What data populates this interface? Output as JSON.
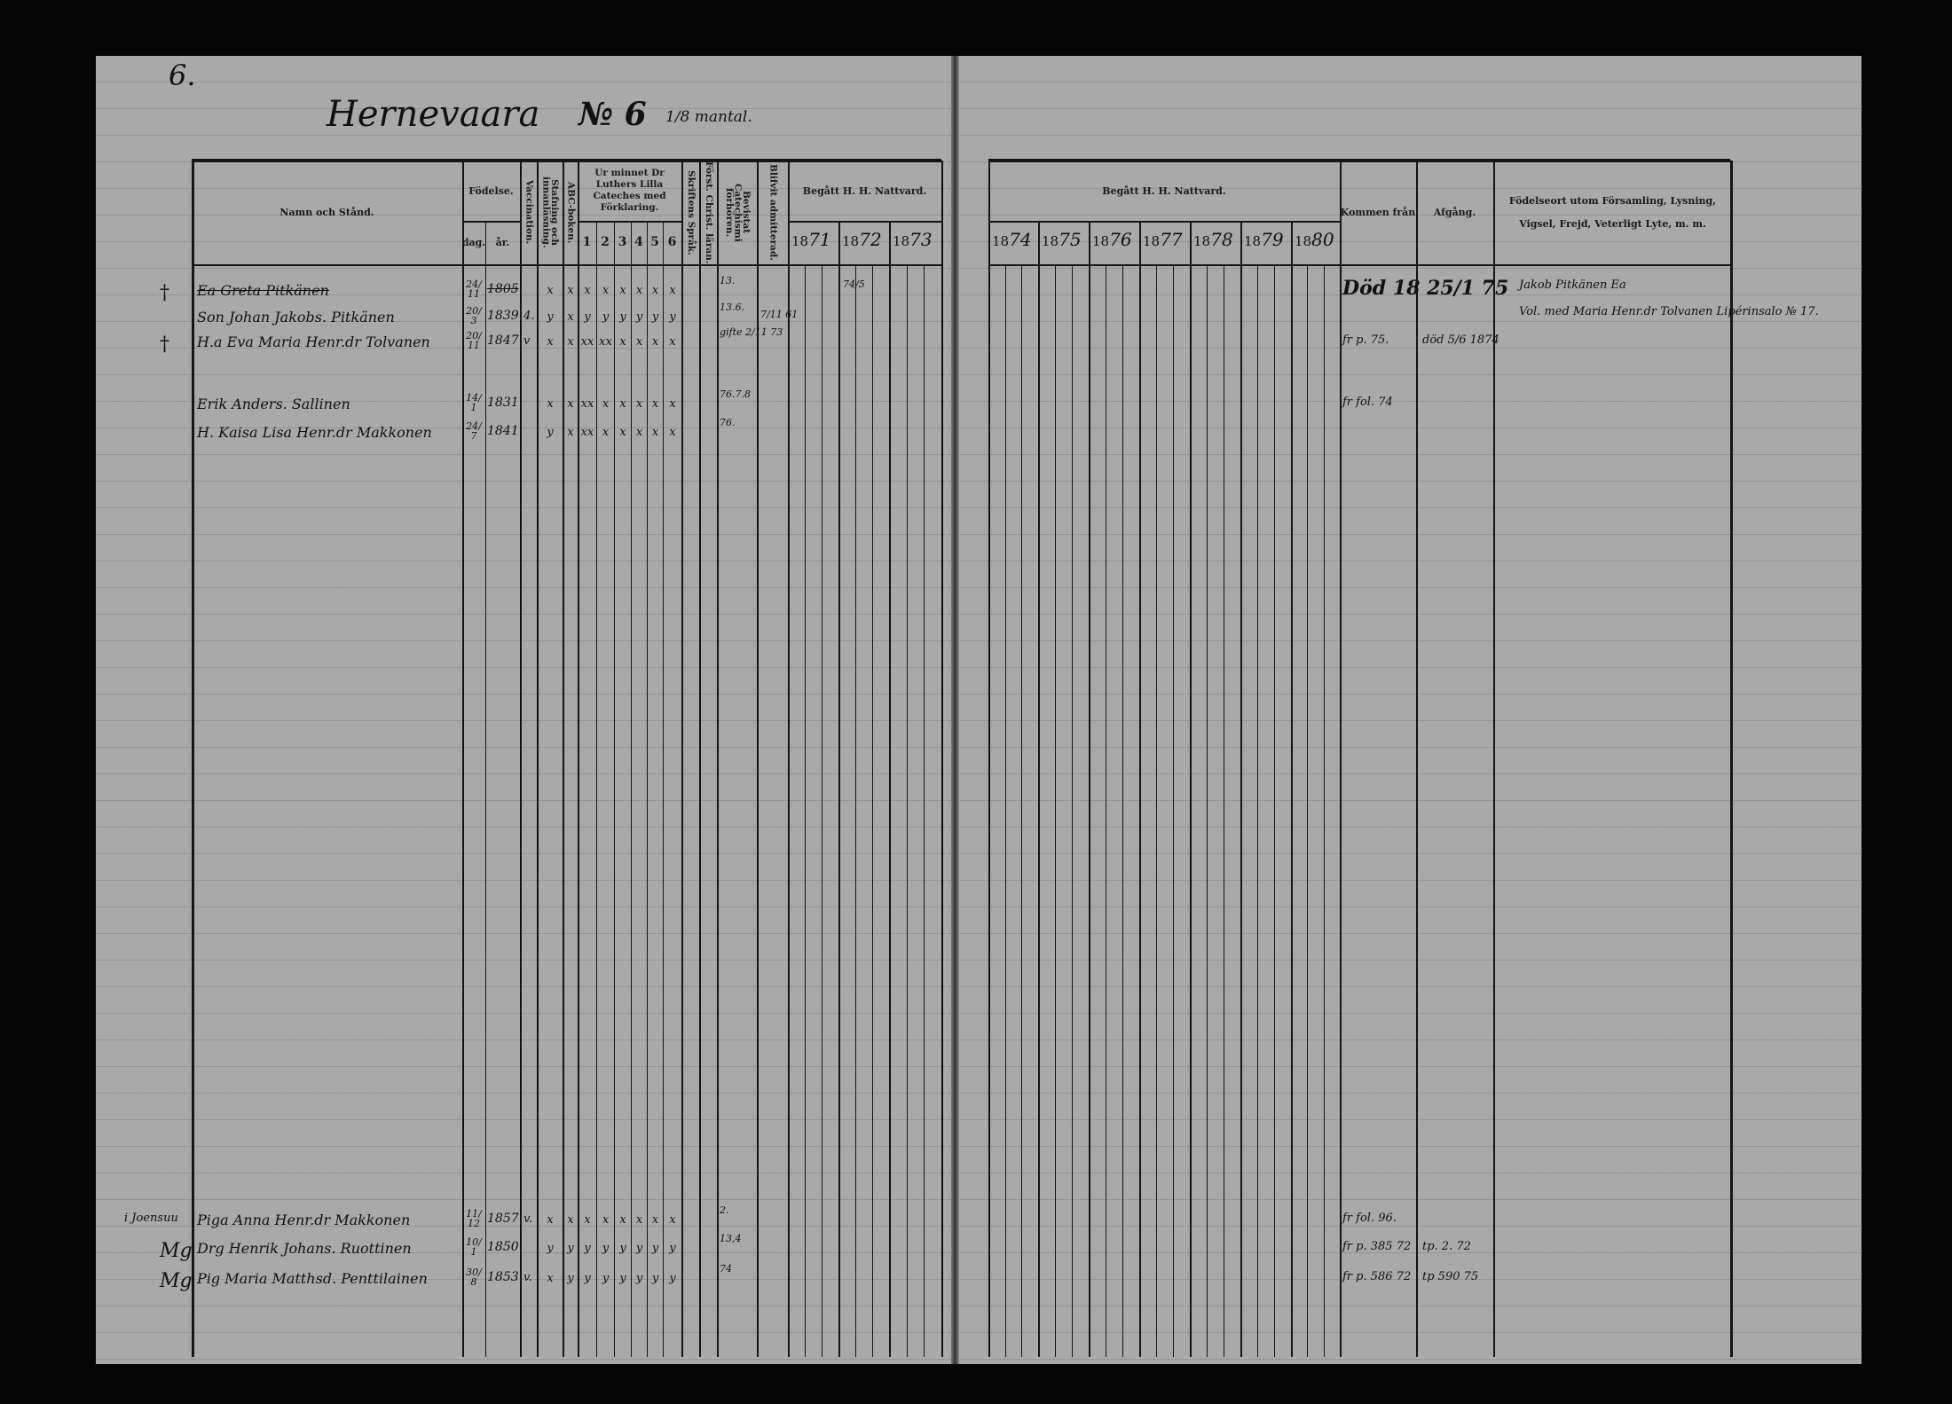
{
  "page": {
    "page_number": "6.",
    "village": "Hernevaara",
    "farm_number": "№ 6",
    "mantal": "1/8 mantal."
  },
  "header": {
    "name": "Namn och Stånd.",
    "birth": "Födelse.",
    "birth_day": "dag.",
    "birth_year": "år.",
    "vaccination": "Vaccination.",
    "reading": "Stafning och innanläsning.",
    "abc": "ABC-boken.",
    "catechism": "Ur minnet Dr Luthers Lilla Cateches med Förklaring.",
    "catechism_parts": [
      "1",
      "2",
      "3",
      "4",
      "5",
      "6"
    ],
    "scripture": "Skriftens Språk.",
    "christianity": "Först. Christ. läran.",
    "examinations": "Bevistat Catechismi förhören.",
    "admitted": "Blifvit admitterad.",
    "communion_left": "Begått H. H. Nattvard.",
    "years_left": [
      {
        "p": "18",
        "h": "71"
      },
      {
        "p": "18",
        "h": "72"
      },
      {
        "p": "18",
        "h": "73"
      }
    ],
    "communion_right": "Begått H. H. Nattvard.",
    "years_right": [
      {
        "p": "18",
        "h": "74"
      },
      {
        "p": "18",
        "h": "75"
      },
      {
        "p": "18",
        "h": "76"
      },
      {
        "p": "18",
        "h": "77"
      },
      {
        "p": "18",
        "h": "78"
      },
      {
        "p": "18",
        "h": "79"
      },
      {
        "p": "18",
        "h": "80"
      }
    ],
    "came_from": "Kommen från",
    "departure": "Afgång.",
    "remarks": "Födelseort utom Församling, Lysning, Vigsel, Frejd, Veterligt Lyte, m. m."
  },
  "entries": [
    {
      "margin": "†",
      "name": "Ea Greta Pitkänen",
      "struck": true,
      "day": "24/11",
      "year": "1805",
      "vacc": "",
      "marks": [
        "x",
        "x",
        "x",
        "x",
        "x",
        "x",
        "x",
        "x"
      ],
      "exam": "13.",
      "admit": "",
      "came_from": "Död 18 25/1 75",
      "departure": "",
      "remark": "Jakob Pitkänen Ea",
      "comm": "74/5"
    },
    {
      "margin": "",
      "name": "Son Johan Jakobs. Pitkänen",
      "struck": false,
      "day": "20/3",
      "year": "1839",
      "vacc": "4.",
      "marks": [
        "y",
        "x",
        "y",
        "y",
        "y",
        "y",
        "y",
        "y"
      ],
      "exam": "13.6.",
      "admit": "7/11 61",
      "came_from": "",
      "departure": "",
      "remark": "Vol. med Maria Henr.dr Tolvanen Lipérinsalo № 17.",
      "comm": ""
    },
    {
      "margin": "†",
      "name": "H.a Eva Maria Henr.dr Tolvanen",
      "struck": false,
      "day": "20/11",
      "year": "1847",
      "vacc": "v",
      "marks": [
        "x",
        "x",
        "xx",
        "xx",
        "x",
        "x",
        "x",
        "x"
      ],
      "exam": "gifte 2/11 73",
      "admit": "",
      "came_from": "fr p. 75.",
      "departure": "död 5/6 1874",
      "remark": "",
      "comm": ""
    },
    {
      "margin": "",
      "name": "Erik Anders. Sallinen",
      "struck": false,
      "day": "14/1",
      "year": "1831",
      "vacc": "",
      "marks": [
        "x",
        "x",
        "xx",
        "x",
        "x",
        "x",
        "x",
        "x"
      ],
      "exam": "76.7.8",
      "admit": "",
      "came_from": "fr fol. 74",
      "departure": "",
      "remark": "",
      "comm": ""
    },
    {
      "margin": "",
      "name": "H. Kaisa Lisa Henr.dr Makkonen",
      "struck": false,
      "day": "24/7",
      "year": "1841",
      "vacc": "",
      "marks": [
        "y",
        "x",
        "xx",
        "x",
        "x",
        "x",
        "x",
        "x"
      ],
      "exam": "76.",
      "admit": "",
      "came_from": "",
      "departure": "",
      "remark": "",
      "comm": ""
    },
    {
      "margin": "i Joensuu",
      "name": "Piga Anna Henr.dr Makkonen",
      "struck": false,
      "day": "11/12",
      "year": "1857",
      "vacc": "v.",
      "marks": [
        "x",
        "x",
        "x",
        "x",
        "x",
        "x",
        "x",
        "x"
      ],
      "exam": "2.",
      "admit": "",
      "came_from": "fr fol. 96.",
      "departure": "",
      "remark": "",
      "comm": ""
    },
    {
      "margin": "Mg",
      "name": "Drg Henrik Johans. Ruottinen",
      "struck": false,
      "day": "10/1",
      "year": "1850",
      "vacc": "",
      "marks": [
        "y",
        "y",
        "y",
        "y",
        "y",
        "y",
        "y",
        "y"
      ],
      "exam": "13,4",
      "admit": "",
      "came_from": "fr p. 385 72",
      "departure": "tp. 2. 72",
      "remark": "",
      "comm": ""
    },
    {
      "margin": "Mg",
      "name": "Pig Maria Matthsd. Penttilainen",
      "struck": false,
      "day": "30/8",
      "year": "1853",
      "vacc": "v.",
      "marks": [
        "x",
        "y",
        "y",
        "y",
        "y",
        "y",
        "y",
        "y"
      ],
      "exam": "74",
      "admit": "",
      "came_from": "fr p. 586 72",
      "departure": "tp 590 75",
      "remark": "",
      "comm": ""
    }
  ]
}
